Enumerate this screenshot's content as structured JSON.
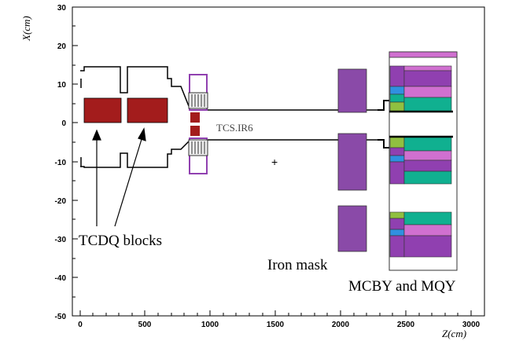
{
  "axes": {
    "x_label": "Z(cm)",
    "y_label": "X(cm)",
    "x_ticks": [
      "0",
      "500",
      "1000",
      "1500",
      "2000",
      "2500",
      "3000"
    ],
    "y_ticks": [
      "30",
      "20",
      "10",
      "0",
      "-10",
      "-20",
      "-30",
      "-40",
      "-50"
    ]
  },
  "labels": {
    "tcdq": "TCDQ blocks",
    "tcs": "TCS.IR6",
    "iron_mask": "Iron mask",
    "mcby": "MCBY and MQY",
    "plus": "+"
  },
  "colors": {
    "tcdq_block": "#a31c1c",
    "iron_mask": "#8a4aa8",
    "magnet_purple": "#9040b0",
    "magnet_pink": "#d070d0",
    "magnet_green": "#10b090",
    "magnet_blue": "#3090e0",
    "magnet_lime": "#90c040"
  }
}
